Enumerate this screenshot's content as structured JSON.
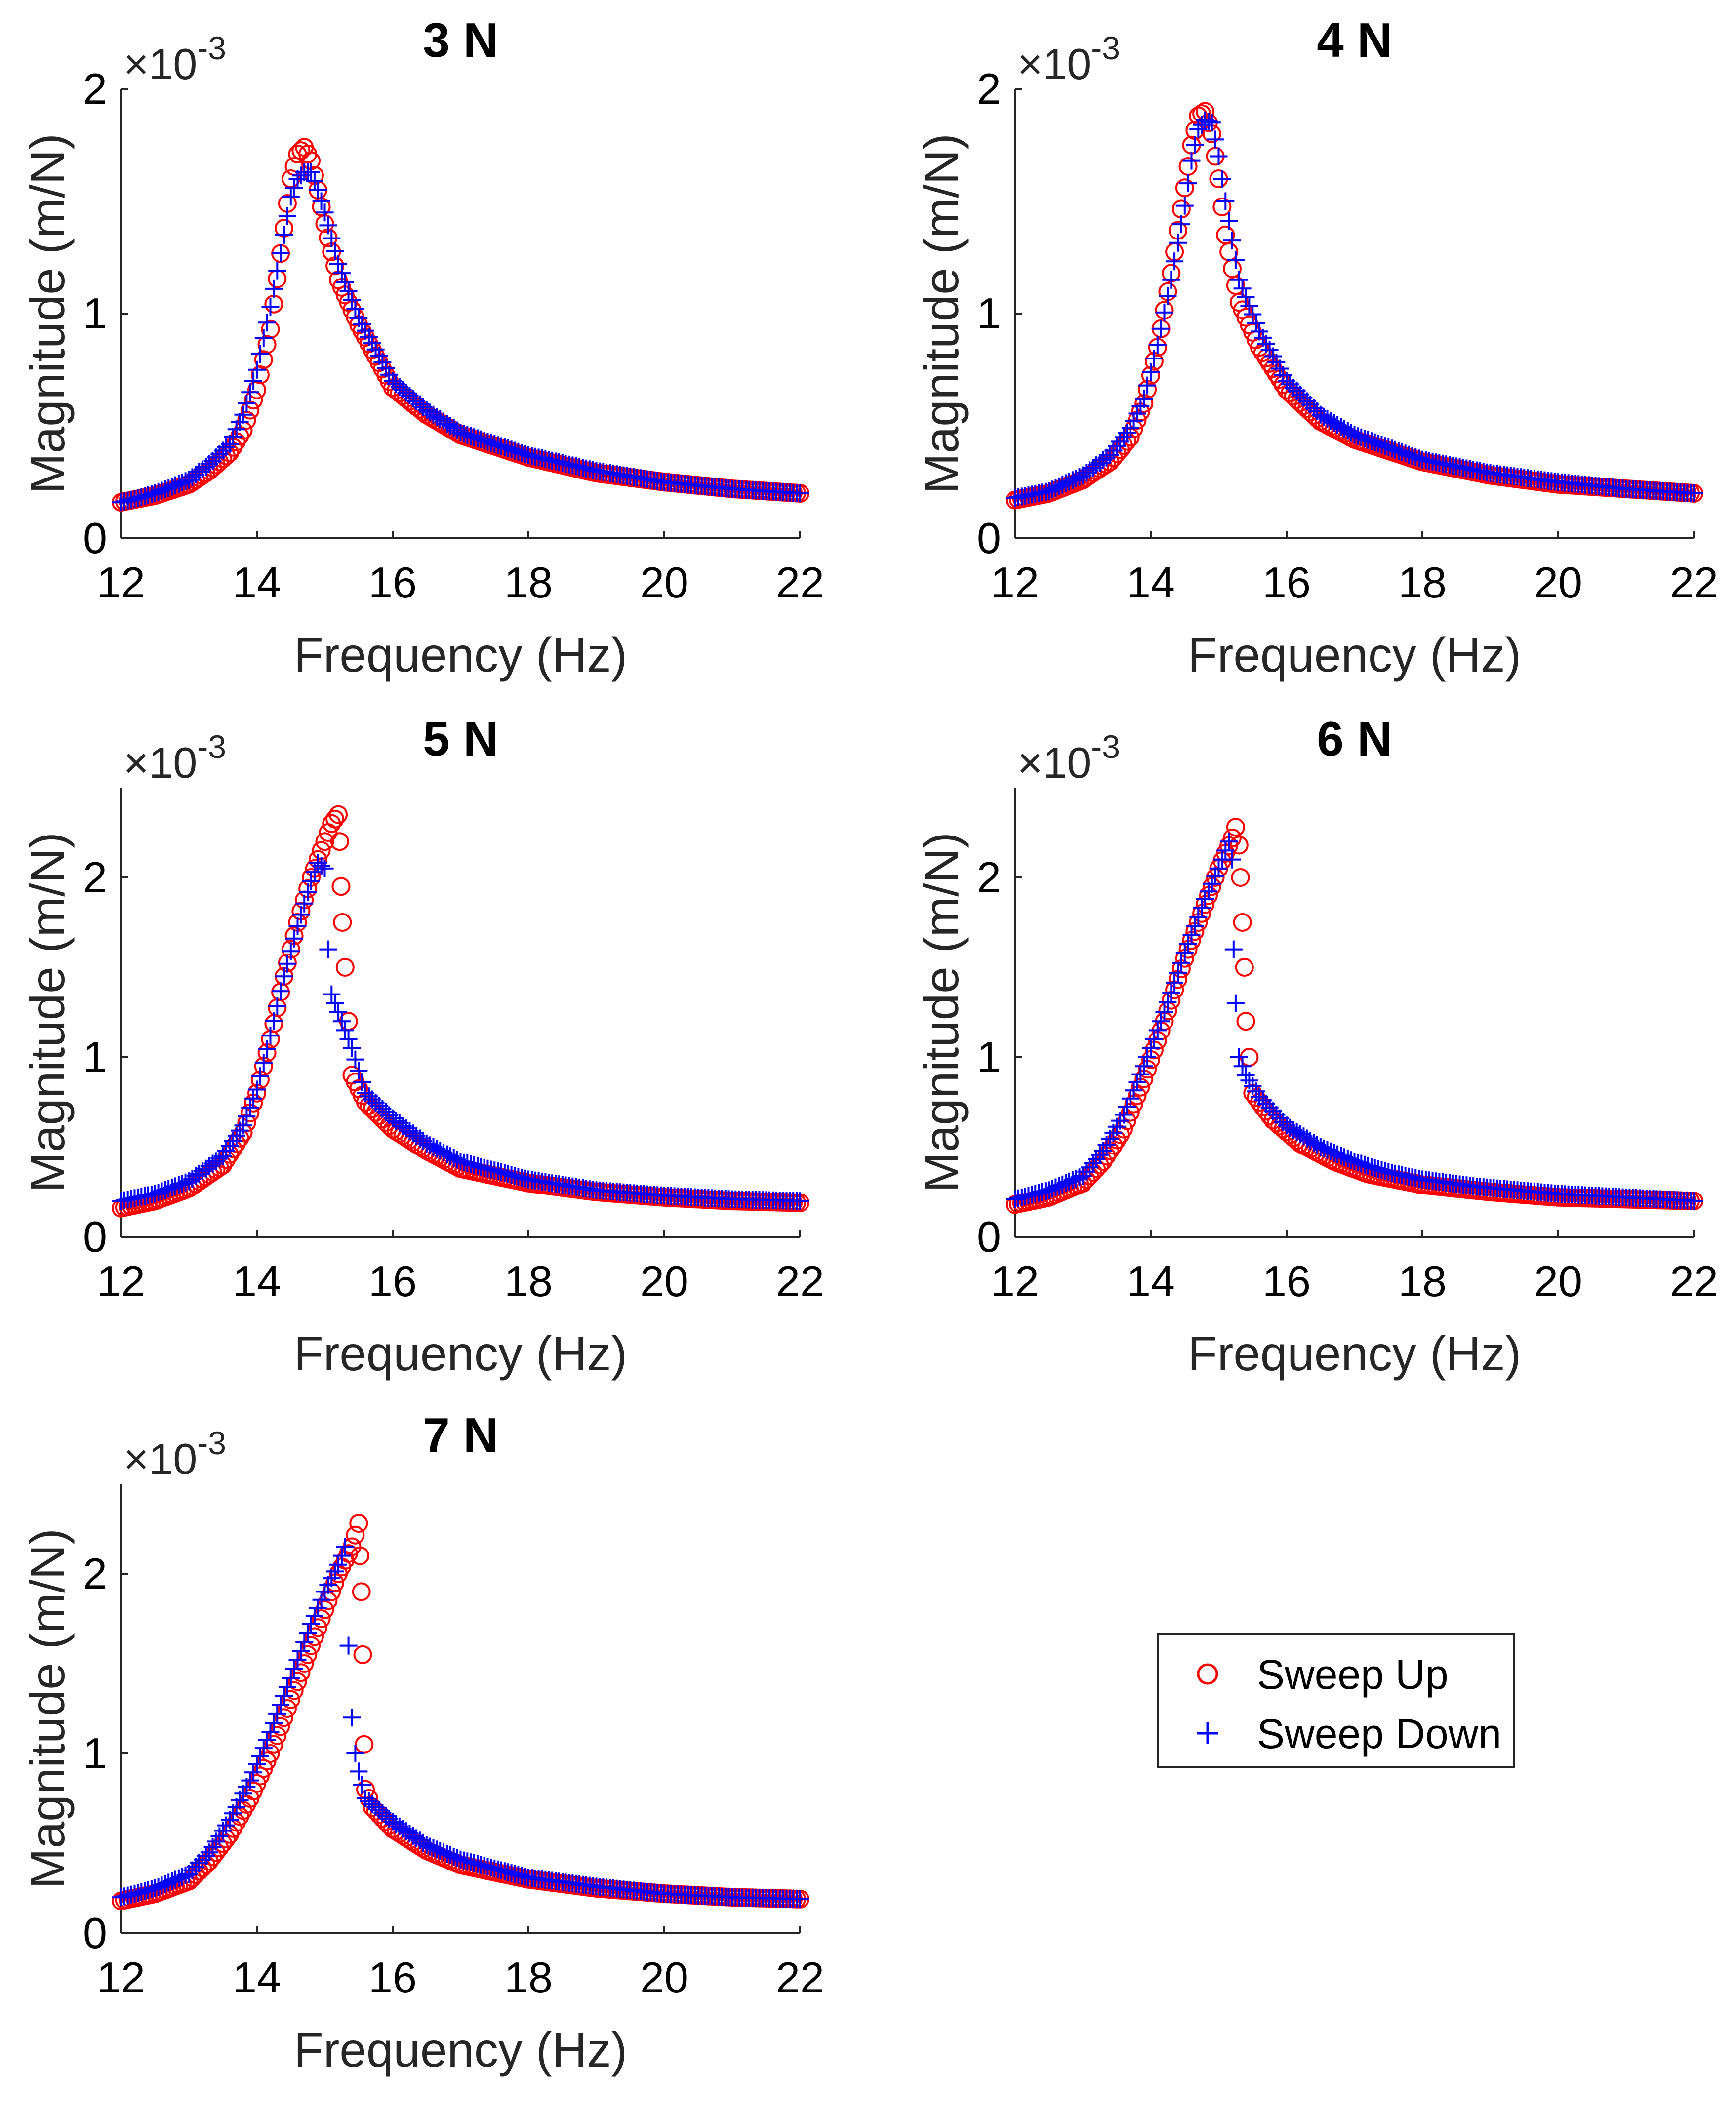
{
  "figure": {
    "legend": {
      "entries": [
        "Sweep Up",
        "Sweep Down"
      ],
      "position": "bottom-right empty cell"
    }
  },
  "colors": {
    "sweep_up": "#ff0000",
    "sweep_down": "#0000ff",
    "axes": "#262626",
    "background": "#ffffff"
  },
  "chart_data": [
    {
      "type": "scatter",
      "title": "3 N",
      "xlabel": "Frequency (Hz)",
      "ylabel": "Magnitude (m/N)",
      "exponent": "-3",
      "xlim": [
        12,
        22
      ],
      "ylim": [
        0,
        2
      ],
      "xticks": [
        "12",
        "14",
        "16",
        "18",
        "20",
        "22"
      ],
      "yticks": [
        "0",
        "1",
        "2"
      ],
      "series": [
        {
          "name": "Sweep Up",
          "marker": "circle",
          "x": [
            12.0,
            12.5,
            13.0,
            13.3,
            13.6,
            13.8,
            14.0,
            14.2,
            14.4,
            14.5,
            14.6,
            14.7,
            14.8,
            14.9,
            15.0,
            15.2,
            15.5,
            16.0,
            16.5,
            17.0,
            18.0,
            19.0,
            20.0,
            21.0,
            22.0
          ],
          "y": [
            0.16,
            0.19,
            0.24,
            0.3,
            0.38,
            0.48,
            0.66,
            0.93,
            1.38,
            1.6,
            1.71,
            1.74,
            1.68,
            1.55,
            1.4,
            1.15,
            0.95,
            0.67,
            0.55,
            0.46,
            0.36,
            0.29,
            0.25,
            0.22,
            0.2
          ]
        },
        {
          "name": "Sweep Down",
          "marker": "plus",
          "x": [
            12.0,
            12.5,
            13.0,
            13.3,
            13.6,
            13.8,
            14.0,
            14.2,
            14.4,
            14.5,
            14.6,
            14.7,
            14.8,
            14.9,
            15.0,
            15.2,
            15.5,
            16.0,
            16.5,
            17.0,
            18.0,
            19.0,
            20.0,
            21.0,
            22.0
          ],
          "y": [
            0.16,
            0.2,
            0.26,
            0.33,
            0.42,
            0.55,
            0.75,
            1.03,
            1.35,
            1.52,
            1.6,
            1.63,
            1.63,
            1.55,
            1.45,
            1.22,
            0.98,
            0.7,
            0.57,
            0.47,
            0.37,
            0.3,
            0.25,
            0.22,
            0.2
          ]
        }
      ]
    },
    {
      "type": "scatter",
      "title": "4 N",
      "xlabel": "Frequency (Hz)",
      "ylabel": "Magnitude (m/N)",
      "exponent": "-3",
      "xlim": [
        12,
        22
      ],
      "ylim": [
        0,
        2
      ],
      "xticks": [
        "12",
        "14",
        "16",
        "18",
        "20",
        "22"
      ],
      "yticks": [
        "0",
        "1",
        "2"
      ],
      "series": [
        {
          "name": "Sweep Up",
          "marker": "circle",
          "x": [
            12.0,
            12.5,
            13.0,
            13.4,
            13.7,
            13.9,
            14.1,
            14.3,
            14.5,
            14.6,
            14.7,
            14.8,
            14.9,
            15.0,
            15.1,
            15.3,
            15.6,
            16.0,
            16.5,
            17.0,
            18.0,
            19.0,
            20.0,
            21.0,
            22.0
          ],
          "y": [
            0.17,
            0.2,
            0.26,
            0.34,
            0.45,
            0.6,
            0.85,
            1.18,
            1.56,
            1.75,
            1.88,
            1.9,
            1.8,
            1.6,
            1.35,
            1.05,
            0.85,
            0.66,
            0.52,
            0.44,
            0.34,
            0.28,
            0.24,
            0.22,
            0.2
          ]
        },
        {
          "name": "Sweep Down",
          "marker": "plus",
          "x": [
            12.0,
            12.5,
            13.0,
            13.4,
            13.7,
            13.9,
            14.1,
            14.3,
            14.5,
            14.6,
            14.7,
            14.8,
            14.9,
            15.0,
            15.1,
            15.3,
            15.6,
            16.0,
            16.5,
            17.0,
            18.0,
            19.0,
            20.0,
            21.0,
            22.0
          ],
          "y": [
            0.18,
            0.21,
            0.28,
            0.37,
            0.49,
            0.62,
            0.86,
            1.15,
            1.48,
            1.68,
            1.82,
            1.86,
            1.85,
            1.7,
            1.5,
            1.15,
            0.92,
            0.7,
            0.55,
            0.46,
            0.35,
            0.29,
            0.25,
            0.22,
            0.2
          ]
        }
      ]
    },
    {
      "type": "scatter",
      "title": "5 N",
      "xlabel": "Frequency (Hz)",
      "ylabel": "Magnitude (m/N)",
      "exponent": "-3",
      "xlim": [
        12,
        22
      ],
      "ylim": [
        0,
        2.5
      ],
      "xticks": [
        "12",
        "14",
        "16",
        "18",
        "20",
        "22"
      ],
      "yticks": [
        "0",
        "1",
        "2"
      ],
      "series": [
        {
          "name": "Sweep Up",
          "marker": "circle",
          "x": [
            12.0,
            12.5,
            13.0,
            13.5,
            13.8,
            14.0,
            14.2,
            14.4,
            14.6,
            14.8,
            15.0,
            15.1,
            15.2,
            15.22,
            15.24,
            15.26,
            15.3,
            15.4,
            15.6,
            16.0,
            16.5,
            17.0,
            18.0,
            19.0,
            20.0,
            21.0,
            22.0
          ],
          "y": [
            0.16,
            0.2,
            0.27,
            0.4,
            0.58,
            0.8,
            1.1,
            1.45,
            1.75,
            2.0,
            2.2,
            2.3,
            2.35,
            2.2,
            1.95,
            1.75,
            1.5,
            0.9,
            0.75,
            0.6,
            0.48,
            0.38,
            0.3,
            0.25,
            0.22,
            0.2,
            0.19
          ]
        },
        {
          "name": "Sweep Down",
          "marker": "plus",
          "x": [
            12.0,
            12.5,
            13.0,
            13.5,
            13.8,
            14.0,
            14.2,
            14.4,
            14.6,
            14.8,
            14.9,
            15.0,
            15.05,
            15.1,
            15.2,
            15.4,
            15.6,
            16.0,
            16.5,
            17.0,
            18.0,
            19.0,
            20.0,
            21.0,
            22.0
          ],
          "y": [
            0.2,
            0.24,
            0.31,
            0.45,
            0.62,
            0.82,
            1.12,
            1.45,
            1.73,
            1.98,
            2.08,
            2.05,
            1.6,
            1.35,
            1.25,
            1.05,
            0.8,
            0.66,
            0.52,
            0.42,
            0.32,
            0.26,
            0.23,
            0.21,
            0.2
          ]
        }
      ]
    },
    {
      "type": "scatter",
      "title": "6 N",
      "xlabel": "Frequency (Hz)",
      "ylabel": "Magnitude (m/N)",
      "exponent": "-3",
      "xlim": [
        12,
        22
      ],
      "ylim": [
        0,
        2.5
      ],
      "xticks": [
        "12",
        "14",
        "16",
        "18",
        "20",
        "22"
      ],
      "yticks": [
        "0",
        "1",
        "2"
      ],
      "series": [
        {
          "name": "Sweep Up",
          "marker": "circle",
          "x": [
            12.0,
            12.5,
            13.0,
            13.3,
            13.6,
            13.9,
            14.2,
            14.5,
            14.8,
            15.0,
            15.2,
            15.25,
            15.3,
            15.32,
            15.35,
            15.38,
            15.4,
            15.5,
            15.8,
            16.2,
            16.7,
            17.2,
            18.0,
            19.0,
            20.0,
            21.0,
            22.0
          ],
          "y": [
            0.18,
            0.22,
            0.3,
            0.42,
            0.6,
            0.88,
            1.2,
            1.55,
            1.85,
            2.05,
            2.22,
            2.28,
            2.18,
            2.0,
            1.75,
            1.5,
            1.2,
            0.8,
            0.65,
            0.52,
            0.42,
            0.35,
            0.29,
            0.25,
            0.22,
            0.21,
            0.2
          ]
        },
        {
          "name": "Sweep Down",
          "marker": "plus",
          "x": [
            12.0,
            12.5,
            13.0,
            13.3,
            13.6,
            13.9,
            14.2,
            14.5,
            14.8,
            15.0,
            15.1,
            15.15,
            15.2,
            15.22,
            15.25,
            15.3,
            15.4,
            15.6,
            16.0,
            16.5,
            17.0,
            17.5,
            18.0,
            18.8,
            20.0,
            21.0,
            22.0
          ],
          "y": [
            0.21,
            0.26,
            0.34,
            0.48,
            0.68,
            0.95,
            1.25,
            1.58,
            1.88,
            2.05,
            2.15,
            2.2,
            2.1,
            1.6,
            1.3,
            1.0,
            0.9,
            0.78,
            0.62,
            0.5,
            0.42,
            0.36,
            0.32,
            0.28,
            0.24,
            0.22,
            0.2
          ]
        }
      ]
    },
    {
      "type": "scatter",
      "title": "7 N",
      "xlabel": "Frequency (Hz)",
      "ylabel": "Magnitude (m/N)",
      "exponent": "-3",
      "xlim": [
        12,
        22
      ],
      "ylim": [
        0,
        2.5
      ],
      "xticks": [
        "12",
        "14",
        "16",
        "18",
        "20",
        "22"
      ],
      "yticks": [
        "0",
        "1",
        "2"
      ],
      "series": [
        {
          "name": "Sweep Up",
          "marker": "circle",
          "x": [
            12.0,
            12.5,
            13.0,
            13.3,
            13.6,
            13.9,
            14.2,
            14.5,
            14.8,
            15.0,
            15.2,
            15.4,
            15.5,
            15.52,
            15.54,
            15.56,
            15.58,
            15.6,
            15.7,
            16.0,
            16.5,
            17.0,
            18.0,
            19.0,
            20.0,
            21.0,
            22.0
          ],
          "y": [
            0.18,
            0.22,
            0.29,
            0.4,
            0.55,
            0.75,
            1.0,
            1.3,
            1.6,
            1.8,
            2.0,
            2.15,
            2.28,
            2.1,
            1.9,
            1.55,
            1.05,
            0.8,
            0.7,
            0.58,
            0.46,
            0.38,
            0.3,
            0.25,
            0.22,
            0.2,
            0.19
          ]
        },
        {
          "name": "Sweep Down",
          "marker": "plus",
          "x": [
            12.0,
            12.5,
            13.0,
            13.3,
            13.6,
            13.9,
            14.2,
            14.5,
            14.8,
            15.0,
            15.2,
            15.3,
            15.35,
            15.4,
            15.45,
            15.5,
            15.6,
            16.0,
            16.5,
            17.0,
            18.0,
            19.0,
            20.0,
            21.0,
            22.0
          ],
          "y": [
            0.2,
            0.25,
            0.33,
            0.45,
            0.63,
            0.85,
            1.12,
            1.42,
            1.72,
            1.9,
            2.05,
            2.15,
            1.6,
            1.2,
            1.0,
            0.9,
            0.75,
            0.62,
            0.49,
            0.41,
            0.31,
            0.26,
            0.22,
            0.2,
            0.19
          ]
        }
      ]
    }
  ]
}
